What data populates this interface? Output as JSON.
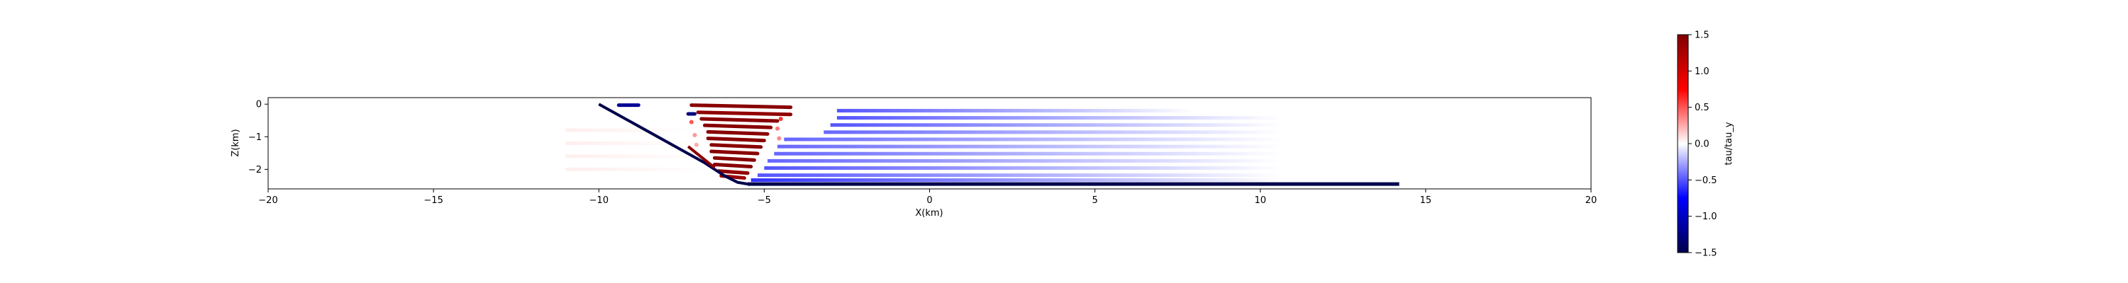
{
  "chart_data": {
    "type": "scatter",
    "title": "",
    "xlabel": "X(km)",
    "ylabel": "Z(km)",
    "xlim": [
      -20,
      20
    ],
    "ylim": [
      -2.6,
      0.2
    ],
    "xticks": [
      -20,
      -15,
      -10,
      -5,
      0,
      5,
      10,
      15,
      20
    ],
    "yticks": [
      0,
      -1,
      -2
    ],
    "grid": false,
    "colorbar": {
      "label": "tau/tau_y",
      "range": [
        -1.5,
        1.5
      ],
      "ticks": [
        1.5,
        1.0,
        0.5,
        0.0,
        -0.5,
        -1.0,
        -1.5
      ],
      "tick_labels": [
        "1.5",
        "1.0",
        "0.5",
        "0.0",
        "−0.5",
        "−1.0",
        "−1.5"
      ],
      "colormap": "seismic"
    },
    "fault": {
      "color": "#00004c",
      "ramp": {
        "x": [
          -10,
          -6.8,
          -6.2,
          -5.8,
          -5.5
        ],
        "z": [
          0,
          -1.8,
          -2.2,
          -2.4,
          -2.45
        ]
      },
      "flat": {
        "x": [
          -5.5,
          14.2
        ],
        "z": [
          -2.45,
          -2.45
        ]
      }
    },
    "bands": [
      {
        "z": -0.03,
        "x0": -7.2,
        "x1": -4.2,
        "value": 1.45
      },
      {
        "z": -0.25,
        "x0": -7.0,
        "x1": -4.2,
        "value": 1.4
      },
      {
        "z": -0.45,
        "x0": -6.9,
        "x1": -4.6,
        "value": 1.45
      },
      {
        "z": -0.65,
        "x0": -6.8,
        "x1": -4.8,
        "value": 1.45
      },
      {
        "z": -0.85,
        "x0": -6.7,
        "x1": -4.9,
        "value": 1.45
      },
      {
        "z": -1.05,
        "x0": -6.7,
        "x1": -5.0,
        "value": 1.45
      },
      {
        "z": -1.25,
        "x0": -6.6,
        "x1": -5.1,
        "value": 1.45
      },
      {
        "z": -1.45,
        "x0": -6.6,
        "x1": -5.2,
        "value": 1.45
      },
      {
        "z": -1.65,
        "x0": -6.5,
        "x1": -5.3,
        "value": 1.45
      },
      {
        "z": -1.85,
        "x0": -6.5,
        "x1": -5.4,
        "value": 1.45
      },
      {
        "z": -2.05,
        "x0": -6.4,
        "x1": -5.5,
        "value": 1.4
      },
      {
        "z": -2.2,
        "x0": -6.3,
        "x1": -5.6,
        "value": 1.35
      },
      {
        "z": -0.03,
        "x0": -9.4,
        "x1": -8.8,
        "value": -1.2
      },
      {
        "z": -0.3,
        "x0": -7.3,
        "x1": -7.1,
        "value": -1.3
      },
      {
        "z": -0.2,
        "x0": -2.8,
        "x1": 8.0,
        "value": -0.5,
        "fade": true
      },
      {
        "z": -0.42,
        "x0": -2.8,
        "x1": 10.6,
        "value": -0.5,
        "fade": true
      },
      {
        "z": -0.64,
        "x0": -3.0,
        "x1": 10.6,
        "value": -0.5,
        "fade": true
      },
      {
        "z": -0.86,
        "x0": -3.2,
        "x1": 10.6,
        "value": -0.45,
        "fade": true
      },
      {
        "z": -1.08,
        "x0": -4.4,
        "x1": 10.6,
        "value": -0.45,
        "fade": true
      },
      {
        "z": -1.3,
        "x0": -4.6,
        "x1": 10.6,
        "value": -0.45,
        "fade": true
      },
      {
        "z": -1.52,
        "x0": -4.7,
        "x1": 10.6,
        "value": -0.45,
        "fade": true
      },
      {
        "z": -1.74,
        "x0": -4.9,
        "x1": 10.6,
        "value": -0.45,
        "fade": true
      },
      {
        "z": -1.96,
        "x0": -5.0,
        "x1": 10.6,
        "value": -0.5,
        "fade": true
      },
      {
        "z": -2.18,
        "x0": -5.2,
        "x1": 10.6,
        "value": -0.5,
        "fade": true
      },
      {
        "z": -2.33,
        "x0": -5.4,
        "x1": 10.6,
        "value": -0.6,
        "fade": true
      },
      {
        "z": -0.8,
        "x0": -11.0,
        "x1": -7.0,
        "value": 0.05,
        "fade": true
      },
      {
        "z": -1.2,
        "x0": -11.0,
        "x1": -6.8,
        "value": 0.05,
        "fade": true
      },
      {
        "z": -1.6,
        "x0": -11.0,
        "x1": -6.6,
        "value": 0.05,
        "fade": true
      },
      {
        "z": -2.0,
        "x0": -11.0,
        "x1": -6.4,
        "value": 0.05,
        "fade": true
      }
    ],
    "dots": [
      {
        "x": -7.2,
        "z": -0.55,
        "value": 0.5
      },
      {
        "x": -7.1,
        "z": -0.95,
        "value": 0.3
      },
      {
        "x": -7.05,
        "z": -1.25,
        "value": 0.25
      },
      {
        "x": -4.5,
        "z": -0.45,
        "value": 0.6
      },
      {
        "x": -4.6,
        "z": -0.75,
        "value": 0.4
      },
      {
        "x": -4.55,
        "z": -1.05,
        "value": 0.35
      }
    ]
  }
}
